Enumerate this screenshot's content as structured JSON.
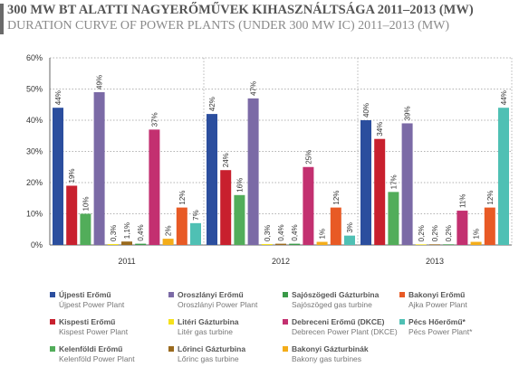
{
  "title": {
    "hu": "300 MW BT ALATTI NAGYERŐMŰVEK KIHASZNÁLTSÁGA 2011–2013 (MW)",
    "en": "DURATION CURVE OF POWER PLANTS (UNDER 300 MW IC) 2011–2013 (MW)"
  },
  "chart_data": {
    "type": "bar",
    "categories": [
      "2011",
      "2012",
      "2013"
    ],
    "ylim": [
      0,
      60
    ],
    "yticks": [
      "0%",
      "10%",
      "20%",
      "30%",
      "40%",
      "50%",
      "60%"
    ],
    "grid": "dotted horizontal",
    "series": [
      {
        "name": "Újpesti Erőmű / Újpest Power Plant",
        "color": "#2b4e9e",
        "values": [
          44,
          42,
          40
        ],
        "labels": [
          "44%",
          "42%",
          "40%"
        ]
      },
      {
        "name": "Kispesti Erőmű / Kispest Power Plant",
        "color": "#c8202e",
        "values": [
          19,
          24,
          34
        ],
        "labels": [
          "19%",
          "24%",
          "34%"
        ]
      },
      {
        "name": "Kelenföldi Erőmű / Kelenföld Power Plant",
        "color": "#52ad5a",
        "values": [
          10,
          16,
          17
        ],
        "labels": [
          "10%",
          "16%",
          "17%"
        ]
      },
      {
        "name": "Oroszlányi Erőmű / Oroszlány Power Plant",
        "color": "#7b6aa6",
        "values": [
          49,
          47,
          39
        ],
        "labels": [
          "49%",
          "47%",
          "39%"
        ]
      },
      {
        "name": "Litéri Gázturbina / Litér gas turbine",
        "color": "#f5e11c",
        "values": [
          0.3,
          0.3,
          0.2
        ],
        "labels": [
          "0,3%",
          "0,3%",
          "0,2%"
        ]
      },
      {
        "name": "Lőrinci Gázturbina / Lőrinc gas turbine",
        "color": "#9a6a1e",
        "values": [
          1.1,
          0.4,
          0.2
        ],
        "labels": [
          "1,1%",
          "0,4%",
          "0,2%"
        ]
      },
      {
        "name": "Sajószögedi Gázturbina / Sajószöged gas turbine",
        "color": "#3a9a48",
        "values": [
          0.4,
          0.4,
          0.2
        ],
        "labels": [
          "0,4%",
          "0,4%",
          "0,2%"
        ]
      },
      {
        "name": "Debreceni Erőmű (DKCE) / Debrecen Power Plant (DKCE)",
        "color": "#c33070",
        "values": [
          37,
          25,
          11
        ],
        "labels": [
          "37%",
          "25%",
          "11%"
        ]
      },
      {
        "name": "Bakonyi Gázturbinák / Bakony gas turbines",
        "color": "#f4ad19",
        "values": [
          2,
          1,
          1
        ],
        "labels": [
          "2%",
          "1%",
          "1%"
        ]
      },
      {
        "name": "Bakonyi Erőmű / Ajka Power Plant",
        "color": "#e85a25",
        "values": [
          12,
          12,
          12
        ],
        "labels": [
          "12%",
          "12%",
          "12%"
        ]
      },
      {
        "name": "Pécs Hőerőmű* / Pécs Power Plant*",
        "color": "#4fc0b4",
        "values": [
          7,
          3,
          44
        ],
        "labels": [
          "7%",
          "3%",
          "44%"
        ]
      }
    ]
  },
  "legend": [
    {
      "hu": "Újpesti Erőmű",
      "en": "Újpest Power Plant",
      "color": "#2b4e9e"
    },
    {
      "hu": "Oroszlányi Erőmű",
      "en": "Oroszlányi Power Plant",
      "color": "#7b6aa6"
    },
    {
      "hu": "Sajószögedi Gázturbina",
      "en": "Sajószöged gas turbine",
      "color": "#3a9a48"
    },
    {
      "hu": "Bakonyi Erőmű",
      "en": "Ajka Power Plant",
      "color": "#e85a25"
    },
    {
      "hu": "Kispesti Erőmű",
      "en": "Kispest Power Plant",
      "color": "#c8202e"
    },
    {
      "hu": "Litéri Gázturbina",
      "en": "Litér gas turbine",
      "color": "#f5e11c"
    },
    {
      "hu": "Debreceni Erőmű (DKCE)",
      "en": "Debrecen Power Plant (DKCE)",
      "color": "#c33070"
    },
    {
      "hu": "Pécs Hőerőmű*",
      "en": "Pécs Power Plant*",
      "color": "#4fc0b4"
    },
    {
      "hu": "Kelenföldi Erőmű",
      "en": "Kelenföld Power Plant",
      "color": "#52ad5a"
    },
    {
      "hu": "Lőrinci Gázturbina",
      "en": "Lőrinc gas turbine",
      "color": "#9a6a1e"
    },
    {
      "hu": "Bakonyi Gázturbinák",
      "en": "Bakony gas turbines",
      "color": "#f4ad19"
    }
  ]
}
